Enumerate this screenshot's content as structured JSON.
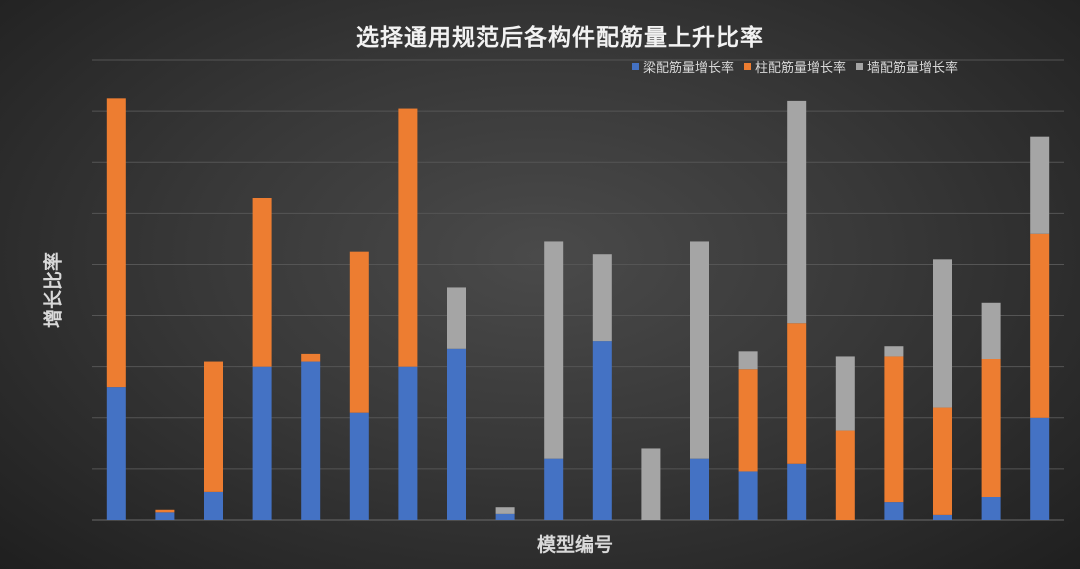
{
  "chart_data": {
    "type": "bar",
    "stacked": true,
    "title": "选择通用规范后各构件配筋量上升比率",
    "xlabel": "模型编号",
    "ylabel": "增长比率",
    "ylim": [
      0,
      9
    ],
    "grid": true,
    "legend_position": "top-right",
    "categories": [
      "",
      "",
      "",
      "",
      "",
      "",
      "",
      "",
      "",
      "",
      "",
      "",
      "",
      "",
      "",
      "",
      "",
      "",
      "",
      ""
    ],
    "series": [
      {
        "name": "梁配筋量增长率",
        "color": "#4472c4",
        "values": [
          2.6,
          0.15,
          0.55,
          3.0,
          3.1,
          2.1,
          3.0,
          3.35,
          0.12,
          1.2,
          3.5,
          0,
          1.2,
          0.95,
          1.1,
          0,
          0.35,
          0.1,
          0.45,
          2.0
        ]
      },
      {
        "name": "柱配筋量增长率",
        "color": "#ed7d31",
        "values": [
          5.65,
          0.05,
          2.55,
          3.3,
          0.15,
          3.15,
          5.05,
          0,
          0,
          0,
          0,
          0,
          0,
          2.0,
          2.75,
          1.75,
          2.85,
          2.1,
          2.7,
          3.6
        ]
      },
      {
        "name": "墙配筋量增长率",
        "color": "#a5a5a5",
        "values": [
          0,
          0,
          0,
          0,
          0,
          0,
          0,
          1.2,
          0.13,
          4.25,
          1.7,
          1.4,
          4.25,
          0.35,
          4.35,
          1.45,
          0.2,
          2.9,
          1.1,
          1.9
        ]
      }
    ]
  }
}
